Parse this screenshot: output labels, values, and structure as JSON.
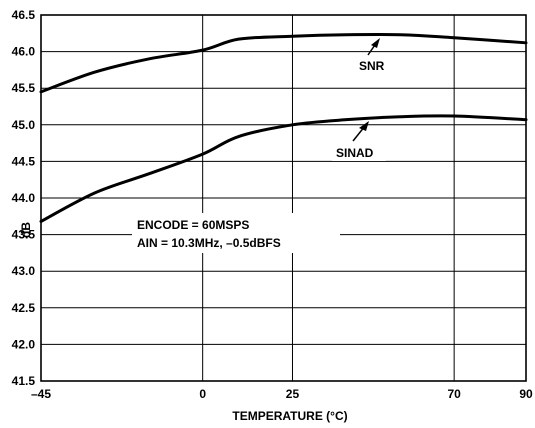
{
  "chart_data": {
    "type": "line",
    "title": "",
    "xlabel": "TEMPERATURE (°C)",
    "ylabel": "dB",
    "xlim": [
      -45,
      90
    ],
    "ylim": [
      41.5,
      46.5
    ],
    "x_ticks": [
      -45,
      0,
      25,
      70,
      90
    ],
    "x_tick_labels": [
      "–45",
      "0",
      "25",
      "70",
      "90"
    ],
    "y_ticks": [
      41.5,
      42.0,
      42.5,
      43.0,
      43.5,
      44.0,
      44.5,
      45.0,
      45.5,
      46.0,
      46.5
    ],
    "y_tick_labels": [
      "41.5",
      "42.0",
      "42.5",
      "43.0",
      "43.5",
      "44.0",
      "44.5",
      "45.0",
      "45.5",
      "46.0",
      "46.5"
    ],
    "grid": true,
    "series": [
      {
        "name": "SNR",
        "x": [
          -45,
          -30,
          -15,
          0,
          10,
          25,
          40,
          55,
          70,
          90
        ],
        "y": [
          45.45,
          45.72,
          45.9,
          46.02,
          46.17,
          46.21,
          46.23,
          46.23,
          46.19,
          46.12
        ]
      },
      {
        "name": "SINAD",
        "x": [
          -45,
          -30,
          -15,
          0,
          10,
          25,
          40,
          55,
          70,
          90
        ],
        "y": [
          43.68,
          44.07,
          44.33,
          44.6,
          44.84,
          45.0,
          45.07,
          45.11,
          45.12,
          45.07
        ]
      }
    ],
    "annotations": [
      "ENCODE = 60MSPS",
      "AIN = 10.3MHz, –0.5dBFS"
    ]
  }
}
